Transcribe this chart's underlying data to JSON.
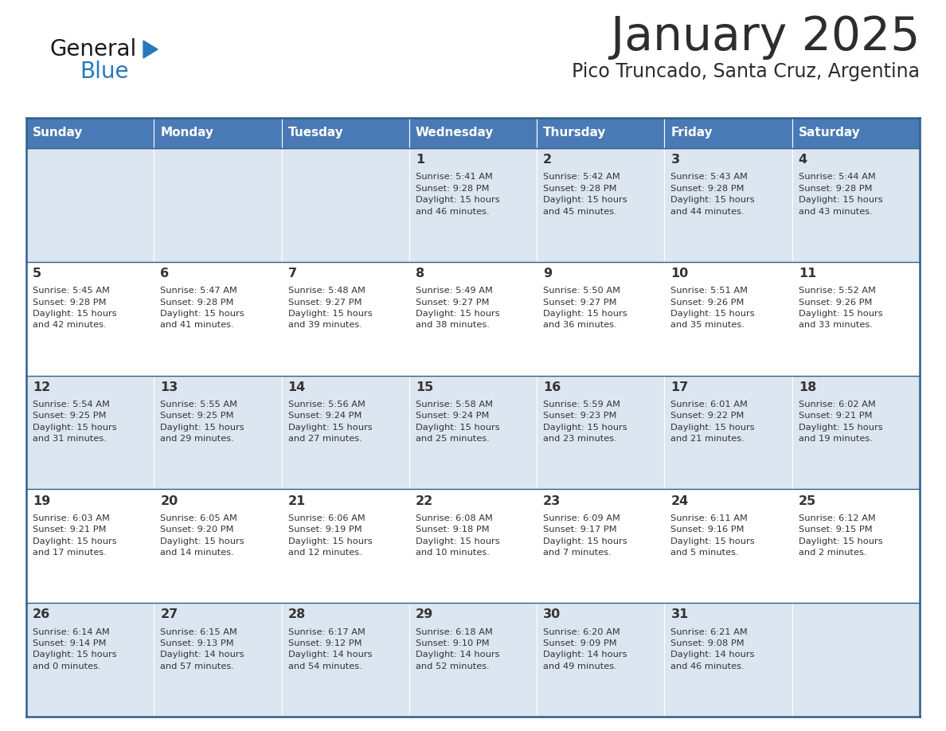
{
  "title": "January 2025",
  "subtitle": "Pico Truncado, Santa Cruz, Argentina",
  "title_color": "#2d2d2d",
  "subtitle_color": "#2d2d2d",
  "header_bg_color": "#4a7ab5",
  "header_text_color": "#ffffff",
  "row_bg_even": "#dce6f1",
  "row_bg_odd": "#ffffff",
  "border_color": "#2e5f8a",
  "text_color": "#333333",
  "days_of_week": [
    "Sunday",
    "Monday",
    "Tuesday",
    "Wednesday",
    "Thursday",
    "Friday",
    "Saturday"
  ],
  "calendar": [
    [
      {
        "day": "",
        "info": ""
      },
      {
        "day": "",
        "info": ""
      },
      {
        "day": "",
        "info": ""
      },
      {
        "day": "1",
        "info": "Sunrise: 5:41 AM\nSunset: 9:28 PM\nDaylight: 15 hours\nand 46 minutes."
      },
      {
        "day": "2",
        "info": "Sunrise: 5:42 AM\nSunset: 9:28 PM\nDaylight: 15 hours\nand 45 minutes."
      },
      {
        "day": "3",
        "info": "Sunrise: 5:43 AM\nSunset: 9:28 PM\nDaylight: 15 hours\nand 44 minutes."
      },
      {
        "day": "4",
        "info": "Sunrise: 5:44 AM\nSunset: 9:28 PM\nDaylight: 15 hours\nand 43 minutes."
      }
    ],
    [
      {
        "day": "5",
        "info": "Sunrise: 5:45 AM\nSunset: 9:28 PM\nDaylight: 15 hours\nand 42 minutes."
      },
      {
        "day": "6",
        "info": "Sunrise: 5:47 AM\nSunset: 9:28 PM\nDaylight: 15 hours\nand 41 minutes."
      },
      {
        "day": "7",
        "info": "Sunrise: 5:48 AM\nSunset: 9:27 PM\nDaylight: 15 hours\nand 39 minutes."
      },
      {
        "day": "8",
        "info": "Sunrise: 5:49 AM\nSunset: 9:27 PM\nDaylight: 15 hours\nand 38 minutes."
      },
      {
        "day": "9",
        "info": "Sunrise: 5:50 AM\nSunset: 9:27 PM\nDaylight: 15 hours\nand 36 minutes."
      },
      {
        "day": "10",
        "info": "Sunrise: 5:51 AM\nSunset: 9:26 PM\nDaylight: 15 hours\nand 35 minutes."
      },
      {
        "day": "11",
        "info": "Sunrise: 5:52 AM\nSunset: 9:26 PM\nDaylight: 15 hours\nand 33 minutes."
      }
    ],
    [
      {
        "day": "12",
        "info": "Sunrise: 5:54 AM\nSunset: 9:25 PM\nDaylight: 15 hours\nand 31 minutes."
      },
      {
        "day": "13",
        "info": "Sunrise: 5:55 AM\nSunset: 9:25 PM\nDaylight: 15 hours\nand 29 minutes."
      },
      {
        "day": "14",
        "info": "Sunrise: 5:56 AM\nSunset: 9:24 PM\nDaylight: 15 hours\nand 27 minutes."
      },
      {
        "day": "15",
        "info": "Sunrise: 5:58 AM\nSunset: 9:24 PM\nDaylight: 15 hours\nand 25 minutes."
      },
      {
        "day": "16",
        "info": "Sunrise: 5:59 AM\nSunset: 9:23 PM\nDaylight: 15 hours\nand 23 minutes."
      },
      {
        "day": "17",
        "info": "Sunrise: 6:01 AM\nSunset: 9:22 PM\nDaylight: 15 hours\nand 21 minutes."
      },
      {
        "day": "18",
        "info": "Sunrise: 6:02 AM\nSunset: 9:21 PM\nDaylight: 15 hours\nand 19 minutes."
      }
    ],
    [
      {
        "day": "19",
        "info": "Sunrise: 6:03 AM\nSunset: 9:21 PM\nDaylight: 15 hours\nand 17 minutes."
      },
      {
        "day": "20",
        "info": "Sunrise: 6:05 AM\nSunset: 9:20 PM\nDaylight: 15 hours\nand 14 minutes."
      },
      {
        "day": "21",
        "info": "Sunrise: 6:06 AM\nSunset: 9:19 PM\nDaylight: 15 hours\nand 12 minutes."
      },
      {
        "day": "22",
        "info": "Sunrise: 6:08 AM\nSunset: 9:18 PM\nDaylight: 15 hours\nand 10 minutes."
      },
      {
        "day": "23",
        "info": "Sunrise: 6:09 AM\nSunset: 9:17 PM\nDaylight: 15 hours\nand 7 minutes."
      },
      {
        "day": "24",
        "info": "Sunrise: 6:11 AM\nSunset: 9:16 PM\nDaylight: 15 hours\nand 5 minutes."
      },
      {
        "day": "25",
        "info": "Sunrise: 6:12 AM\nSunset: 9:15 PM\nDaylight: 15 hours\nand 2 minutes."
      }
    ],
    [
      {
        "day": "26",
        "info": "Sunrise: 6:14 AM\nSunset: 9:14 PM\nDaylight: 15 hours\nand 0 minutes."
      },
      {
        "day": "27",
        "info": "Sunrise: 6:15 AM\nSunset: 9:13 PM\nDaylight: 14 hours\nand 57 minutes."
      },
      {
        "day": "28",
        "info": "Sunrise: 6:17 AM\nSunset: 9:12 PM\nDaylight: 14 hours\nand 54 minutes."
      },
      {
        "day": "29",
        "info": "Sunrise: 6:18 AM\nSunset: 9:10 PM\nDaylight: 14 hours\nand 52 minutes."
      },
      {
        "day": "30",
        "info": "Sunrise: 6:20 AM\nSunset: 9:09 PM\nDaylight: 14 hours\nand 49 minutes."
      },
      {
        "day": "31",
        "info": "Sunrise: 6:21 AM\nSunset: 9:08 PM\nDaylight: 14 hours\nand 46 minutes."
      },
      {
        "day": "",
        "info": ""
      }
    ]
  ],
  "logo_general_color": "#1a1a1a",
  "logo_blue_color": "#2878be",
  "logo_triangle_color": "#2878be",
  "fig_width": 11.88,
  "fig_height": 9.18
}
